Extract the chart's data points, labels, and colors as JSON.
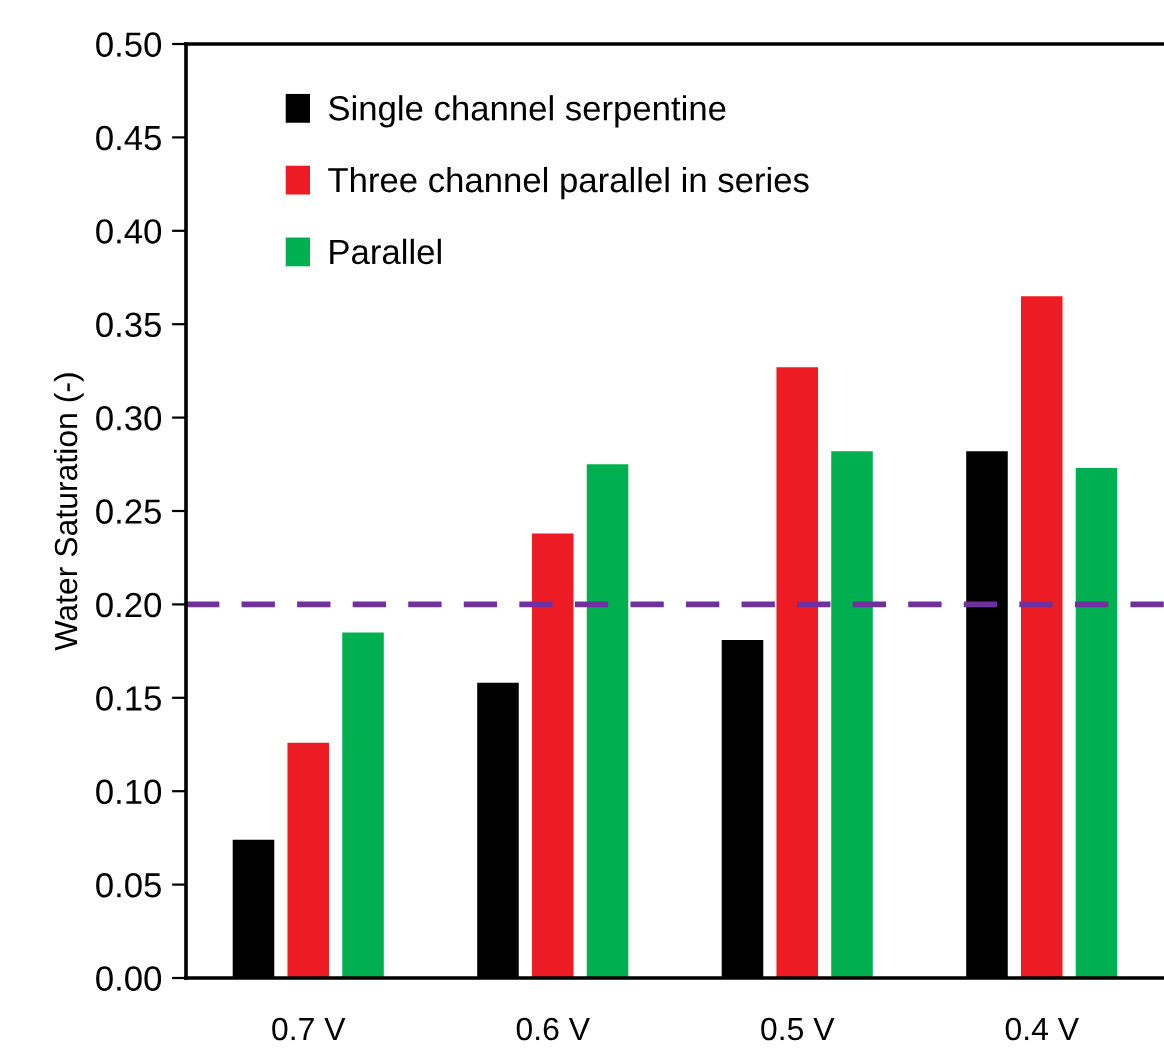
{
  "chart_data": {
    "type": "bar",
    "ylabel": "Water Saturation (-)",
    "categories": [
      "0.7 V",
      "0.6 V",
      "0.5 V",
      "0.4 V"
    ],
    "series": [
      {
        "name": "Single channel serpentine",
        "color": "#000000",
        "values": [
          0.074,
          0.158,
          0.181,
          0.282
        ]
      },
      {
        "name": "Three channel parallel in series",
        "color": "#ed1c24",
        "values": [
          0.126,
          0.238,
          0.327,
          0.365
        ]
      },
      {
        "name": "Parallel",
        "color": "#00b050",
        "values": [
          0.185,
          0.275,
          0.282,
          0.273
        ]
      }
    ],
    "ylim": [
      0,
      0.5
    ],
    "yticks": [
      {
        "value": 0,
        "label": "0.00"
      },
      {
        "value": 0.05,
        "label": "0.05"
      },
      {
        "value": 0.1,
        "label": "0.10"
      },
      {
        "value": 0.15,
        "label": "0.15"
      },
      {
        "value": 0.2,
        "label": "0.20"
      },
      {
        "value": 0.25,
        "label": "0.25"
      },
      {
        "value": 0.3,
        "label": "0.30"
      },
      {
        "value": 0.35,
        "label": "0.35"
      },
      {
        "value": 0.4,
        "label": "0.40"
      },
      {
        "value": 0.45,
        "label": "0.45"
      },
      {
        "value": 0.5,
        "label": "0.50"
      }
    ],
    "ref_lines": [
      {
        "axis": "y",
        "value": 0.2,
        "color": "#7030a0",
        "line_style": "dashed"
      }
    ],
    "grid": false,
    "legend": "top left"
  }
}
